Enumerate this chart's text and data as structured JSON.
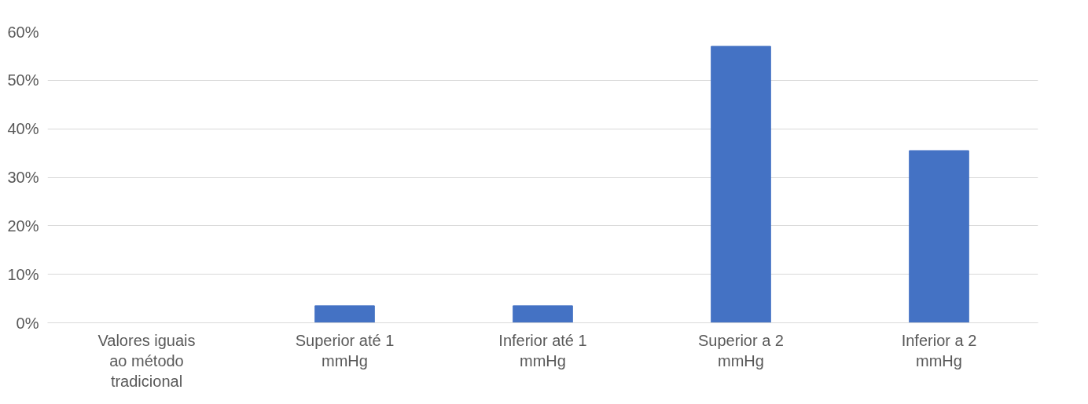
{
  "chart_data": {
    "type": "bar",
    "categories": [
      "Valores iguais ao método tradicional",
      "Superior até 1 mmHg",
      "Inferior até 1 mmHg",
      "Superior a 2 mmHg",
      "Inferior a 2 mmHg"
    ],
    "values": [
      0,
      3.5,
      3.5,
      57,
      35.5
    ],
    "color": "#4472c4",
    "ylim": [
      0,
      60
    ],
    "yticks": [
      {
        "value": 0,
        "label": "0%"
      },
      {
        "value": 10,
        "label": "10%"
      },
      {
        "value": 20,
        "label": "20%"
      },
      {
        "value": 30,
        "label": "30%"
      },
      {
        "value": 40,
        "label": "40%"
      },
      {
        "value": 50,
        "label": "50%"
      },
      {
        "value": 60,
        "label": "60%"
      }
    ],
    "grid": "y"
  }
}
